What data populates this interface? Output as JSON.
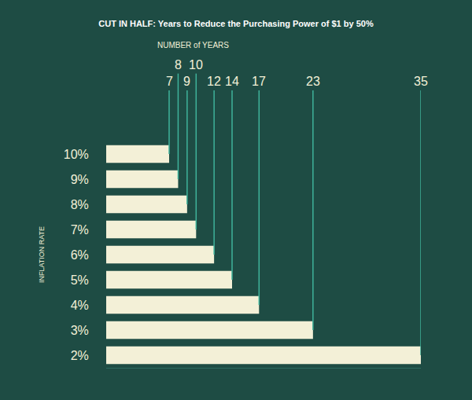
{
  "chart_data": {
    "type": "bar",
    "orientation": "horizontal",
    "title": "CUT IN HALF: Years to Reduce the Purchasing Power of $1 by 50%",
    "xlabel": "NUMBER of YEARS",
    "ylabel": "INFLATION RATE",
    "categories": [
      "10%",
      "9%",
      "8%",
      "7%",
      "6%",
      "5%",
      "4%",
      "3%",
      "2%"
    ],
    "values": [
      7,
      8,
      9,
      10,
      12,
      14,
      17,
      23,
      35
    ],
    "color": "#f3f0d7",
    "xlim": [
      0,
      35
    ],
    "data_labels": true,
    "tick_labels": "y",
    "grid": false
  }
}
